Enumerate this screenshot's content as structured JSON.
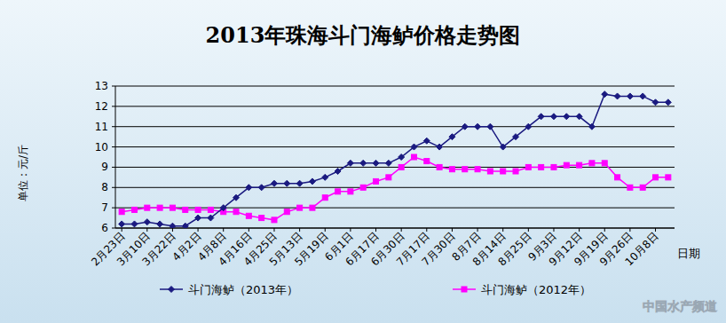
{
  "chart_data": {
    "type": "line",
    "title": "2013年珠海斗门海鲈价格走势图",
    "y_label": "单位：元/斤",
    "x_label": "日期",
    "categories": [
      "2月23日",
      null,
      "3月10日",
      null,
      "3月22日",
      null,
      "4月2日",
      null,
      "4月8日",
      null,
      "4月16日",
      null,
      "4月25日",
      null,
      "5月13日",
      null,
      "5月19日",
      null,
      "6月1日",
      null,
      "6月17日",
      null,
      "6月30日",
      null,
      "7月17日",
      null,
      "7月30日",
      null,
      "8月7日",
      null,
      "8月14日",
      null,
      "8月25日",
      null,
      "9月3日",
      null,
      "9月12日",
      null,
      "9月19日",
      null,
      "9月26日",
      null,
      "10月8日",
      null
    ],
    "series": [
      {
        "name": "斗门海鲈（2013年）",
        "color": "#1a1a80",
        "marker": "diamond",
        "values": [
          6.2,
          6.2,
          6.3,
          6.2,
          6.1,
          6.1,
          6.5,
          6.5,
          7.0,
          7.5,
          8.0,
          8.0,
          8.2,
          8.2,
          8.2,
          8.3,
          8.5,
          8.8,
          9.2,
          9.2,
          9.2,
          9.2,
          9.5,
          10.0,
          10.3,
          10.0,
          10.5,
          11.0,
          11.0,
          11.0,
          10.0,
          10.5,
          11.0,
          11.5,
          11.5,
          11.5,
          11.5,
          11.0,
          12.6,
          12.5,
          12.5,
          12.5,
          12.2,
          12.2
        ]
      },
      {
        "name": "斗门海鲈（2012年）",
        "color": "#ff00ff",
        "marker": "square",
        "values": [
          6.8,
          6.9,
          7.0,
          7.0,
          7.0,
          6.9,
          6.9,
          6.9,
          6.8,
          6.8,
          6.6,
          6.5,
          6.4,
          6.8,
          7.0,
          7.0,
          7.5,
          7.8,
          7.8,
          8.0,
          8.3,
          8.5,
          9.0,
          9.5,
          9.3,
          9.0,
          8.9,
          8.9,
          8.9,
          8.8,
          8.8,
          8.8,
          9.0,
          9.0,
          9.0,
          9.1,
          9.1,
          9.2,
          9.2,
          8.5,
          8.0,
          8.0,
          8.5,
          8.5
        ]
      }
    ],
    "ylim": [
      6,
      13
    ],
    "yticks": [
      6,
      7,
      8,
      9,
      10,
      11,
      12,
      13
    ],
    "grid": true,
    "legend": "bottom",
    "annotations": [
      "中国水产频道"
    ]
  }
}
